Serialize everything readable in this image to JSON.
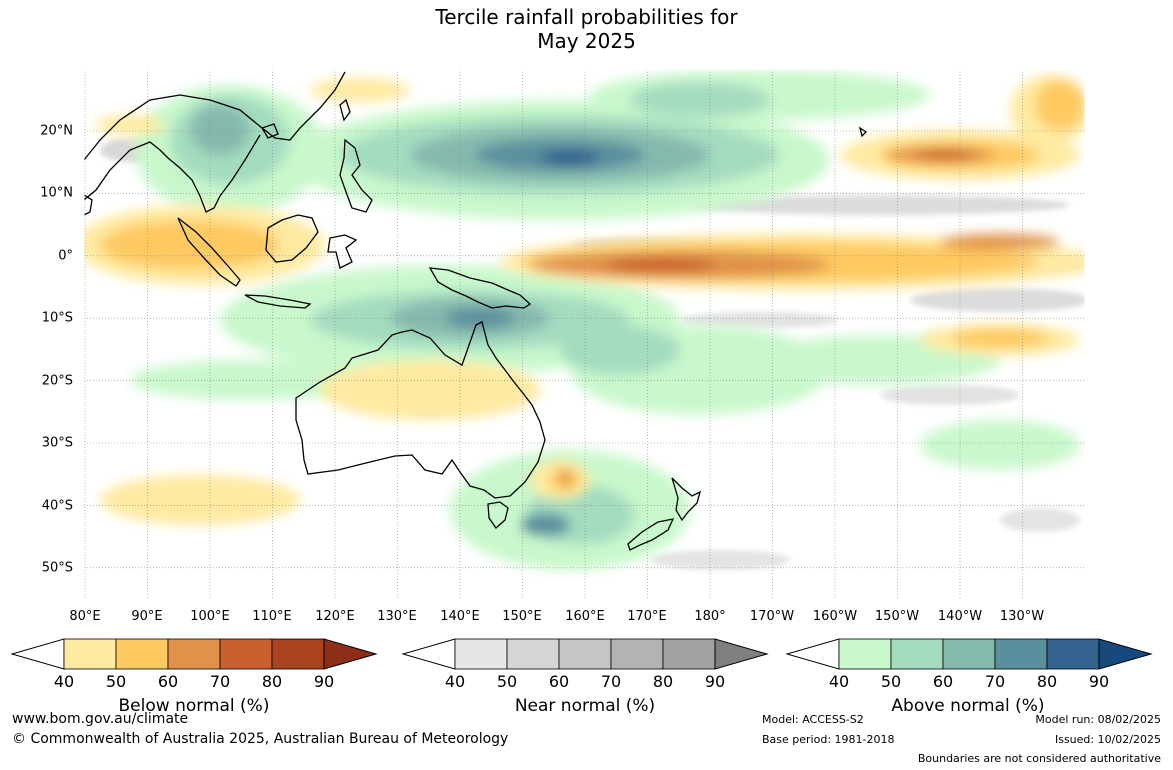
{
  "title": {
    "line1": "Tercile rainfall probabilities for",
    "line2": "May 2025"
  },
  "map": {
    "lon_labels": [
      "80°E",
      "90°E",
      "100°E",
      "110°E",
      "120°E",
      "130°E",
      "140°E",
      "150°E",
      "160°E",
      "170°E",
      "180°",
      "170°W",
      "160°W",
      "150°W",
      "140°W",
      "130°W"
    ],
    "lat_labels": [
      "20°N",
      "10°N",
      "0°",
      "10°S",
      "20°S",
      "30°S",
      "40°S",
      "50°S"
    ]
  },
  "colorbars": [
    {
      "name": "below",
      "title": "Below normal (%)",
      "ticks": [
        "40",
        "50",
        "60",
        "70",
        "80",
        "90"
      ],
      "colors": [
        "#ffeaa0",
        "#fec961",
        "#e0924a",
        "#c8612f",
        "#a9441f"
      ],
      "extend_color": "#8c2e18"
    },
    {
      "name": "near",
      "title": "Near normal (%)",
      "ticks": [
        "40",
        "50",
        "60",
        "70",
        "80",
        "90"
      ],
      "colors": [
        "#e6e6e6",
        "#d5d5d5",
        "#c5c5c5",
        "#b3b3b3",
        "#a2a2a2"
      ],
      "extend_color": "#7f7f7f"
    },
    {
      "name": "above",
      "title": "Above normal (%)",
      "ticks": [
        "40",
        "50",
        "60",
        "70",
        "80",
        "90"
      ],
      "colors": [
        "#c9f8cc",
        "#a4dcc0",
        "#86b9ad",
        "#5a909e",
        "#33628f"
      ],
      "extend_color": "#17497c"
    }
  ],
  "footer": {
    "website": "www.bom.gov.au/climate",
    "copyright": "© Commonwealth of Australia 2025, Australian Bureau of Meteorology",
    "model": "Model: ACCESS-S2",
    "base_period": "Base period: 1981-2018",
    "model_run": "Model run: 08/02/2025",
    "issued": "Issued: 10/02/2025",
    "disclaimer": "Boundaries are not considered authoritative"
  }
}
